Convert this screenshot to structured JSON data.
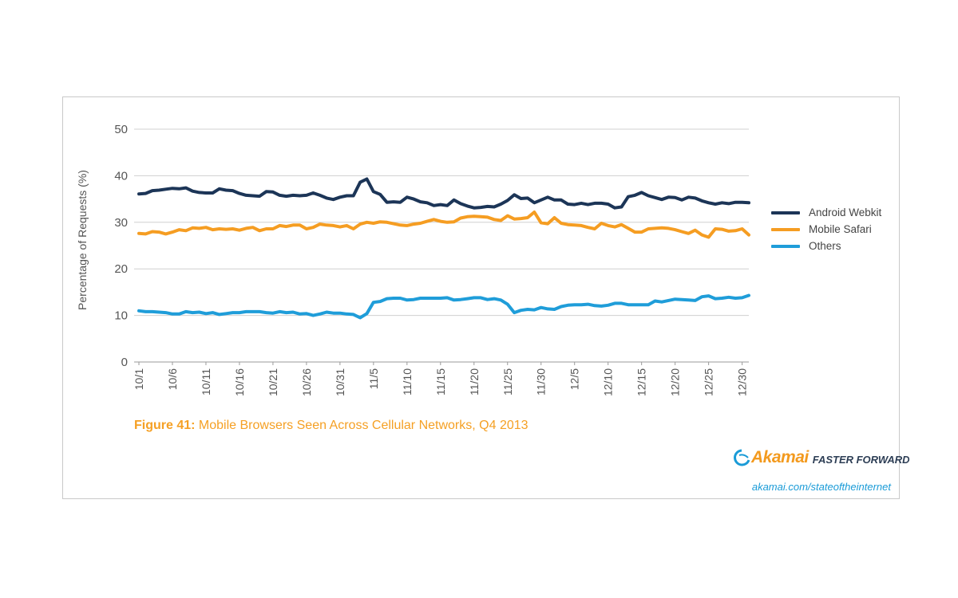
{
  "chart_data": {
    "type": "line",
    "title": "",
    "ylabel": "Percentage of Requests (%)",
    "xlabel": "",
    "ylim": [
      0,
      50
    ],
    "yticks": [
      0,
      10,
      20,
      30,
      40,
      50
    ],
    "grid": true,
    "legend_position": "right",
    "x_tick_labels": [
      "10/1",
      "10/6",
      "10/11",
      "10/16",
      "10/21",
      "10/26",
      "10/31",
      "11/5",
      "11/10",
      "11/15",
      "11/20",
      "11/25",
      "11/30",
      "12/5",
      "12/10",
      "12/15",
      "12/20",
      "12/25",
      "12/30"
    ],
    "x_tick_day_index": [
      0,
      5,
      10,
      15,
      20,
      25,
      30,
      35,
      40,
      45,
      50,
      55,
      60,
      65,
      70,
      75,
      80,
      85,
      90
    ],
    "num_days": 92,
    "series": [
      {
        "name": "Android Webkit",
        "color": "#1c3557",
        "values": [
          36.1,
          36.2,
          36.8,
          36.9,
          37.1,
          37.3,
          37.2,
          37.4,
          36.7,
          36.4,
          36.3,
          36.3,
          37.2,
          36.9,
          36.8,
          36.2,
          35.8,
          35.7,
          35.6,
          36.6,
          36.5,
          35.8,
          35.6,
          35.8,
          35.7,
          35.8,
          36.3,
          35.8,
          35.2,
          34.9,
          35.4,
          35.7,
          35.7,
          38.6,
          39.3,
          36.6,
          36.0,
          34.3,
          34.4,
          34.3,
          35.4,
          35.0,
          34.4,
          34.2,
          33.6,
          33.8,
          33.6,
          34.8,
          34.0,
          33.5,
          33.1,
          33.2,
          33.4,
          33.3,
          33.9,
          34.7,
          35.9,
          35.1,
          35.2,
          34.2,
          34.8,
          35.4,
          34.8,
          34.8,
          33.9,
          33.8,
          34.1,
          33.8,
          34.1,
          34.1,
          33.9,
          33.1,
          33.3,
          35.5,
          35.8,
          36.4,
          35.7,
          35.3,
          34.9,
          35.4,
          35.3,
          34.8,
          35.4,
          35.2,
          34.6,
          34.2,
          33.9,
          34.2,
          34.0,
          34.3,
          34.3,
          34.2
        ]
      },
      {
        "name": "Mobile Safari",
        "color": "#f59d22",
        "values": [
          27.6,
          27.5,
          28.0,
          27.9,
          27.5,
          27.9,
          28.4,
          28.2,
          28.8,
          28.7,
          28.9,
          28.4,
          28.6,
          28.5,
          28.6,
          28.3,
          28.7,
          28.9,
          28.2,
          28.6,
          28.6,
          29.3,
          29.1,
          29.4,
          29.4,
          28.6,
          28.9,
          29.6,
          29.4,
          29.3,
          29.0,
          29.3,
          28.6,
          29.6,
          30.0,
          29.8,
          30.1,
          30.0,
          29.7,
          29.4,
          29.3,
          29.6,
          29.8,
          30.2,
          30.6,
          30.2,
          30.0,
          30.1,
          30.9,
          31.2,
          31.3,
          31.2,
          31.1,
          30.6,
          30.4,
          31.4,
          30.7,
          30.8,
          31.0,
          32.2,
          29.9,
          29.7,
          31.0,
          29.8,
          29.5,
          29.4,
          29.3,
          28.9,
          28.6,
          29.8,
          29.3,
          29.0,
          29.5,
          28.7,
          27.9,
          27.9,
          28.6,
          28.7,
          28.8,
          28.7,
          28.4,
          28.0,
          27.6,
          28.3,
          27.3,
          26.8,
          28.6,
          28.5,
          28.1,
          28.2,
          28.6,
          27.3
        ]
      },
      {
        "name": "Others",
        "color": "#1f9dd9",
        "values": [
          11.0,
          10.8,
          10.8,
          10.7,
          10.6,
          10.3,
          10.3,
          10.8,
          10.6,
          10.7,
          10.4,
          10.6,
          10.2,
          10.4,
          10.6,
          10.6,
          10.8,
          10.8,
          10.8,
          10.6,
          10.5,
          10.8,
          10.6,
          10.7,
          10.3,
          10.4,
          10.0,
          10.3,
          10.7,
          10.5,
          10.5,
          10.3,
          10.2,
          9.5,
          10.4,
          12.8,
          13.0,
          13.6,
          13.7,
          13.7,
          13.3,
          13.4,
          13.7,
          13.7,
          13.7,
          13.7,
          13.8,
          13.3,
          13.4,
          13.6,
          13.8,
          13.8,
          13.4,
          13.6,
          13.3,
          12.4,
          10.6,
          11.1,
          11.3,
          11.2,
          11.7,
          11.4,
          11.3,
          11.9,
          12.2,
          12.3,
          12.3,
          12.4,
          12.1,
          12.0,
          12.2,
          12.6,
          12.6,
          12.3,
          12.3,
          12.3,
          12.3,
          13.1,
          12.9,
          13.2,
          13.5,
          13.4,
          13.3,
          13.2,
          14.0,
          14.2,
          13.6,
          13.7,
          13.9,
          13.7,
          13.8,
          14.3
        ]
      }
    ]
  },
  "caption": {
    "prefix": "Figure 41:",
    "text": " Mobile Browsers Seen Across Cellular Networks, Q4 2013"
  },
  "branding": {
    "logo_name": "Akamai",
    "tagline": "FASTER FORWARD",
    "url": "akamai.com/stateoftheinternet"
  }
}
